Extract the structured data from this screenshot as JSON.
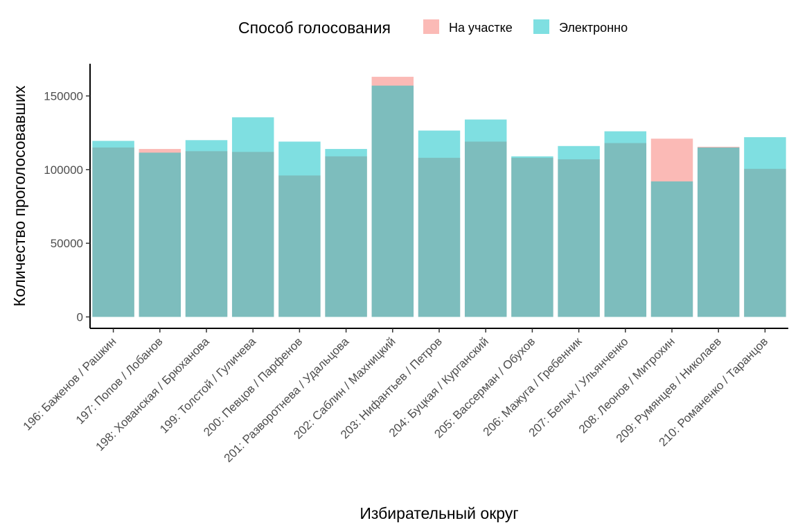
{
  "chart_data": {
    "type": "bar",
    "overlay": true,
    "title": "",
    "xlabel": "Избирательный округ",
    "ylabel": "Количество проголосовавших",
    "ylim": [
      0,
      172000
    ],
    "yticks": [
      0,
      50000,
      100000,
      150000
    ],
    "ytick_labels": [
      "0",
      "50000",
      "100000",
      "150000"
    ],
    "grid": false,
    "legend": {
      "title": "Способ голосования",
      "position": "top"
    },
    "categories": [
      "196: Баженов / Рашкин",
      "197: Попов / Лобанов",
      "198: Хованская / Брюханова",
      "199: Толстой / Гуличева",
      "200: Певцов / Парфенов",
      "201: Разворотнева / Удальцова",
      "202: Саблин / Махницкий",
      "203: Нифантьев / Петров",
      "204: Буцкая / Курганский",
      "205: Вассерман / Обухов",
      "206: Мажуга / Гребенник",
      "207: Белых / Ульянченко",
      "208: Леонов / Митрохин",
      "209: Румянцев / Николаев",
      "210: Романенко / Таранцов"
    ],
    "series": [
      {
        "name": "На участке",
        "color": "#F8766D",
        "values": [
          115000,
          114000,
          112500,
          112000,
          96000,
          109000,
          163000,
          108000,
          119000,
          108000,
          107000,
          118000,
          121000,
          115500,
          100500
        ]
      },
      {
        "name": "Электронно",
        "color": "#00BFC4",
        "values": [
          119500,
          111500,
          120000,
          135500,
          119000,
          114000,
          157000,
          126500,
          134000,
          109000,
          116000,
          126000,
          92000,
          115000,
          122000
        ]
      }
    ]
  }
}
